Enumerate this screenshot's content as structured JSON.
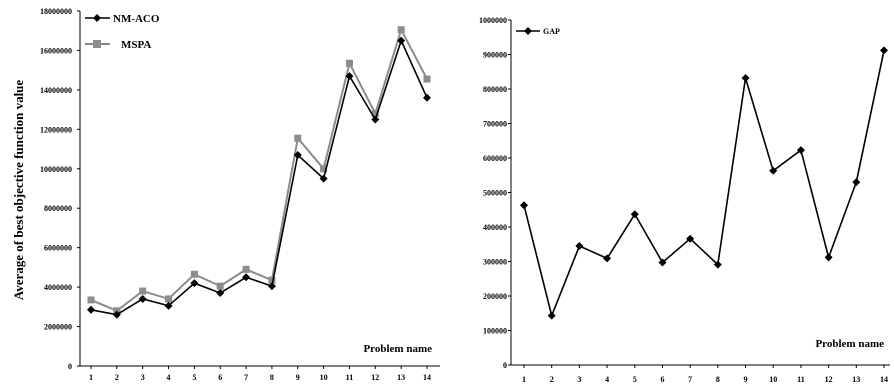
{
  "chart_data": [
    {
      "type": "line",
      "title": "",
      "xlabel": "Problem name",
      "ylabel": "Average of best objective function value",
      "categories": [
        "1",
        "2",
        "3",
        "4",
        "5",
        "6",
        "7",
        "8",
        "9",
        "10",
        "11",
        "12",
        "13",
        "14"
      ],
      "ylim": [
        0,
        18000000
      ],
      "yticks": [
        "0",
        "2000000",
        "4000000",
        "6000000",
        "8000000",
        "10000000",
        "12000000",
        "14000000",
        "16000000",
        "18000000"
      ],
      "legend_position": "top-left",
      "grid": false,
      "series": [
        {
          "name": "NM-ACO",
          "color": "#000000",
          "marker": "diamond",
          "values": [
            2850000,
            2600000,
            3400000,
            3050000,
            4200000,
            3700000,
            4500000,
            4050000,
            10700000,
            9500000,
            14700000,
            12500000,
            16500000,
            13600000
          ]
        },
        {
          "name": "MSPA",
          "color": "#8c8c8c",
          "marker": "square",
          "values": [
            3350000,
            2800000,
            3800000,
            3400000,
            4650000,
            4050000,
            4900000,
            4350000,
            11550000,
            10000000,
            15350000,
            12800000,
            17050000,
            14550000
          ]
        }
      ]
    },
    {
      "type": "line",
      "title": "",
      "xlabel": "Problem name",
      "ylabel": "",
      "categories": [
        "1",
        "2",
        "3",
        "4",
        "5",
        "6",
        "7",
        "8",
        "9",
        "10",
        "11",
        "12",
        "13",
        "14"
      ],
      "ylim": [
        0,
        1000000
      ],
      "yticks": [
        "0",
        "100000",
        "200000",
        "300000",
        "400000",
        "500000",
        "600000",
        "700000",
        "800000",
        "900000",
        "1000000"
      ],
      "legend_position": "top-left",
      "grid": false,
      "series": [
        {
          "name": "GAP",
          "color": "#000000",
          "marker": "diamond",
          "values": [
            463000,
            143000,
            345000,
            309000,
            437000,
            297000,
            366000,
            291000,
            832000,
            563000,
            623000,
            312000,
            530000,
            912000
          ]
        }
      ]
    }
  ]
}
